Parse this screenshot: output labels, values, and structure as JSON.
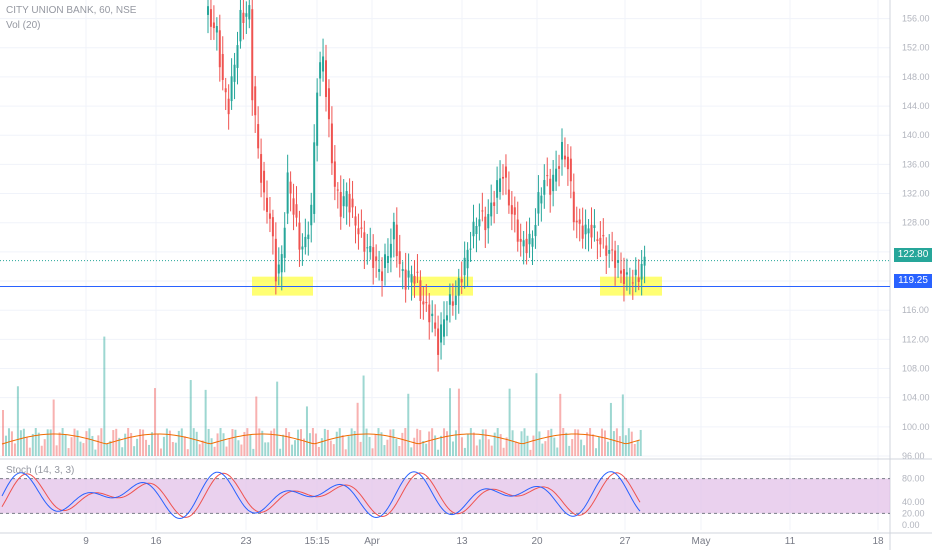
{
  "legend": {
    "symbol": "CITY UNION BANK, 60, NSE",
    "volume": "Vol (20)",
    "stoch": "Stoch (14, 3, 3)"
  },
  "price_badges": {
    "last": "122.80",
    "level": "119.25"
  },
  "colors": {
    "up": "#26a69a",
    "down": "#ef5350",
    "level_line": "#2962ff",
    "last_line": "#26a69a",
    "highlight": "#ffff00",
    "stoch_band": "#e1bee7",
    "stoch_k": "#2962ff",
    "stoch_d": "#ef5350",
    "volume_ma": "#ef6c00"
  },
  "chart_data": {
    "type": "candlestick",
    "price_axis": {
      "ylim": [
        96,
        158
      ],
      "ticks": [
        "156.00",
        "152.00",
        "148.00",
        "144.00",
        "140.00",
        "136.00",
        "132.00",
        "128.00",
        "124.00",
        "120.00",
        "116.00",
        "112.00",
        "108.00",
        "104.00",
        "100.00",
        "96.00"
      ]
    },
    "time_axis": {
      "ticks": [
        "9",
        "16",
        "23",
        "15:15",
        "Apr",
        "13",
        "20",
        "27",
        "May",
        "11",
        "18"
      ]
    },
    "last_price": 122.8,
    "support_level": 119.25,
    "support_zones": [
      "first",
      "second",
      "third"
    ],
    "candles_segments": [
      {
        "points": [
          [
            0,
            156.5
          ],
          [
            3,
            154
          ],
          [
            5,
            147
          ],
          [
            7,
            144
          ],
          [
            9,
            150
          ],
          [
            11,
            156
          ],
          [
            14,
            157
          ]
        ]
      },
      {
        "points": [
          [
            15,
            146
          ],
          [
            17,
            138
          ],
          [
            19,
            131
          ],
          [
            21,
            129
          ],
          [
            23,
            121
          ],
          [
            25,
            123
          ],
          [
            27,
            134
          ],
          [
            29,
            130
          ],
          [
            31,
            125
          ],
          [
            33,
            125
          ],
          [
            35,
            130
          ],
          [
            37,
            147
          ],
          [
            39,
            151
          ],
          [
            41,
            141
          ],
          [
            43,
            133
          ],
          [
            45,
            130
          ],
          [
            47,
            132
          ],
          [
            49,
            129
          ],
          [
            51,
            127
          ],
          [
            53,
            125
          ],
          [
            55,
            124
          ],
          [
            57,
            122
          ],
          [
            59,
            121
          ],
          [
            61,
            124
          ],
          [
            63,
            127
          ],
          [
            65,
            122
          ],
          [
            67,
            120
          ],
          [
            69,
            121
          ],
          [
            71,
            120
          ]
        ]
      },
      {
        "points": [
          [
            72,
            118
          ],
          [
            74,
            116
          ],
          [
            76,
            115
          ],
          [
            78,
            111
          ],
          [
            80,
            115
          ],
          [
            82,
            117
          ],
          [
            84,
            118
          ],
          [
            86,
            121
          ],
          [
            88,
            124
          ],
          [
            90,
            127
          ],
          [
            92,
            129
          ],
          [
            94,
            128
          ],
          [
            96,
            130
          ],
          [
            98,
            133
          ],
          [
            100,
            135
          ],
          [
            102,
            131
          ],
          [
            104,
            128
          ],
          [
            106,
            125
          ],
          [
            108,
            125
          ],
          [
            110,
            126
          ],
          [
            112,
            131
          ],
          [
            114,
            134
          ],
          [
            116,
            133
          ],
          [
            118,
            135
          ],
          [
            120,
            138
          ],
          [
            122,
            136
          ],
          [
            124,
            129
          ],
          [
            126,
            127
          ],
          [
            128,
            127
          ],
          [
            130,
            127
          ],
          [
            132,
            126
          ],
          [
            134,
            125
          ],
          [
            136,
            124
          ],
          [
            138,
            123
          ],
          [
            140,
            121
          ],
          [
            142,
            120
          ],
          [
            144,
            120
          ],
          [
            146,
            121
          ],
          [
            148,
            122.8
          ]
        ]
      }
    ],
    "stochastic": {
      "ylim": [
        0,
        100
      ],
      "ticks": [
        "80.00",
        "40.00",
        "20.00",
        "0.00"
      ],
      "upper": 80,
      "lower": 20
    }
  }
}
